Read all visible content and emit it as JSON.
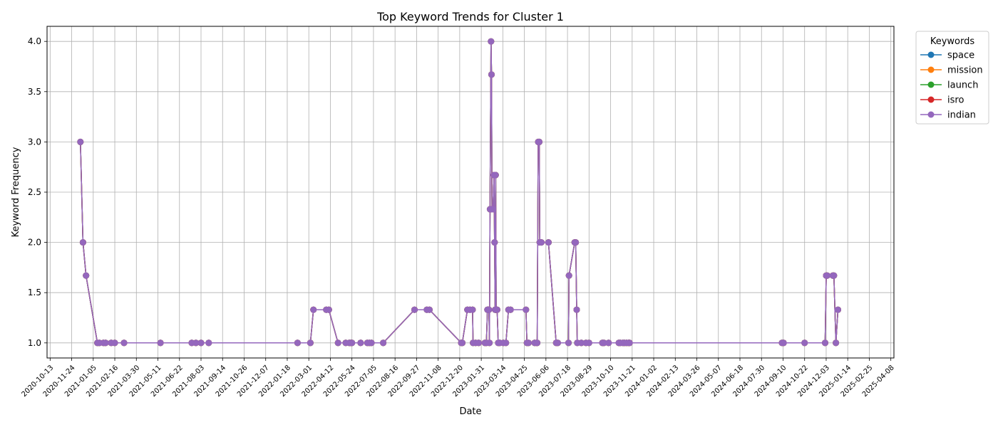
{
  "chart_data": {
    "type": "line",
    "title": "Top Keyword Trends for Cluster 1",
    "xlabel": "Date",
    "ylabel": "Keyword Frequency",
    "xlim": [
      "2020-10-07",
      "2025-04-14"
    ],
    "ylim": [
      0.85,
      4.15
    ],
    "x_ticks": [
      "2020-10-13",
      "2020-11-24",
      "2021-01-05",
      "2021-02-16",
      "2021-03-30",
      "2021-05-11",
      "2021-06-22",
      "2021-08-03",
      "2021-09-14",
      "2021-10-26",
      "2021-12-07",
      "2022-01-18",
      "2022-03-01",
      "2022-04-12",
      "2022-05-24",
      "2022-07-05",
      "2022-08-16",
      "2022-09-27",
      "2022-11-08",
      "2022-12-20",
      "2023-01-31",
      "2023-03-14",
      "2023-04-25",
      "2023-06-06",
      "2023-07-18",
      "2023-08-29",
      "2023-10-10",
      "2023-11-21",
      "2024-01-02",
      "2024-02-13",
      "2024-03-26",
      "2024-05-07",
      "2024-06-18",
      "2024-07-30",
      "2024-09-10",
      "2024-10-22",
      "2024-12-03",
      "2025-01-14",
      "2025-02-25",
      "2025-04-08"
    ],
    "y_ticks": [
      "1.0",
      "1.5",
      "2.0",
      "2.5",
      "3.0",
      "3.5",
      "4.0"
    ],
    "grid": true,
    "legend": {
      "title": "Keywords",
      "placement": "outside-top-right"
    },
    "series": [
      {
        "name": "space",
        "color": "#1f77b4"
      },
      {
        "name": "mission",
        "color": "#ff7f0e"
      },
      {
        "name": "launch",
        "color": "#2ca02c"
      },
      {
        "name": "isro",
        "color": "#d62728"
      },
      {
        "name": "indian",
        "color": "#9467bd"
      }
    ],
    "points": [
      [
        "2020-12-11",
        3.0
      ],
      [
        "2020-12-16",
        2.0
      ],
      [
        "2020-12-22",
        1.67
      ],
      [
        "2021-01-13",
        1.0
      ],
      [
        "2021-01-17",
        1.0
      ],
      [
        "2021-01-25",
        1.0
      ],
      [
        "2021-01-29",
        1.0
      ],
      [
        "2021-02-09",
        1.0
      ],
      [
        "2021-02-16",
        1.0
      ],
      [
        "2021-03-06",
        1.0
      ],
      [
        "2021-05-16",
        1.0
      ],
      [
        "2021-07-16",
        1.0
      ],
      [
        "2021-07-24",
        1.0
      ],
      [
        "2021-08-03",
        1.0
      ],
      [
        "2021-08-18",
        1.0
      ],
      [
        "2022-02-07",
        1.0
      ],
      [
        "2022-03-04",
        1.0
      ],
      [
        "2022-03-10",
        1.33
      ],
      [
        "2022-04-04",
        1.33
      ],
      [
        "2022-04-09",
        1.33
      ],
      [
        "2022-04-27",
        1.0
      ],
      [
        "2022-05-12",
        1.0
      ],
      [
        "2022-05-19",
        1.0
      ],
      [
        "2022-05-22",
        1.0
      ],
      [
        "2022-05-24",
        1.0
      ],
      [
        "2022-06-10",
        1.0
      ],
      [
        "2022-06-23",
        1.0
      ],
      [
        "2022-06-27",
        1.0
      ],
      [
        "2022-07-01",
        1.0
      ],
      [
        "2022-07-24",
        1.0
      ],
      [
        "2022-09-23",
        1.33
      ],
      [
        "2022-10-17",
        1.33
      ],
      [
        "2022-10-22",
        1.33
      ],
      [
        "2022-12-23",
        1.0
      ],
      [
        "2022-12-25",
        1.0
      ],
      [
        "2023-01-04",
        1.33
      ],
      [
        "2023-01-09",
        1.33
      ],
      [
        "2023-01-14",
        1.33
      ],
      [
        "2023-01-15",
        1.0
      ],
      [
        "2023-01-20",
        1.0
      ],
      [
        "2023-01-26",
        1.0
      ],
      [
        "2023-02-07",
        1.0
      ],
      [
        "2023-02-10",
        1.0
      ],
      [
        "2023-02-12",
        1.33
      ],
      [
        "2023-02-13",
        1.33
      ],
      [
        "2023-02-15",
        1.33
      ],
      [
        "2023-02-16",
        1.0
      ],
      [
        "2023-02-17",
        2.33
      ],
      [
        "2023-02-19",
        4.0
      ],
      [
        "2023-02-20",
        3.67
      ],
      [
        "2023-02-21",
        2.33
      ],
      [
        "2023-02-22",
        2.33
      ],
      [
        "2023-02-23",
        2.33
      ],
      [
        "2023-02-25",
        2.67
      ],
      [
        "2023-02-26",
        2.0
      ],
      [
        "2023-02-27",
        1.33
      ],
      [
        "2023-02-28",
        2.67
      ],
      [
        "2023-03-01",
        1.33
      ],
      [
        "2023-03-03",
        1.33
      ],
      [
        "2023-03-05",
        1.0
      ],
      [
        "2023-03-08",
        1.0
      ],
      [
        "2023-03-15",
        1.0
      ],
      [
        "2023-03-20",
        1.0
      ],
      [
        "2023-03-25",
        1.33
      ],
      [
        "2023-03-29",
        1.33
      ],
      [
        "2023-04-28",
        1.33
      ],
      [
        "2023-04-30",
        1.0
      ],
      [
        "2023-05-03",
        1.0
      ],
      [
        "2023-05-15",
        1.0
      ],
      [
        "2023-05-19",
        1.0
      ],
      [
        "2023-05-20",
        1.0
      ],
      [
        "2023-05-22",
        3.0
      ],
      [
        "2023-05-24",
        3.0
      ],
      [
        "2023-05-25",
        2.0
      ],
      [
        "2023-05-28",
        2.0
      ],
      [
        "2023-06-11",
        2.0
      ],
      [
        "2023-06-26",
        1.0
      ],
      [
        "2023-06-29",
        1.0
      ],
      [
        "2023-07-20",
        1.0
      ],
      [
        "2023-07-21",
        1.67
      ],
      [
        "2023-08-01",
        2.0
      ],
      [
        "2023-08-03",
        2.0
      ],
      [
        "2023-08-05",
        1.33
      ],
      [
        "2023-08-06",
        1.0
      ],
      [
        "2023-08-14",
        1.0
      ],
      [
        "2023-08-23",
        1.0
      ],
      [
        "2023-08-29",
        1.0
      ],
      [
        "2023-09-24",
        1.0
      ],
      [
        "2023-09-27",
        1.0
      ],
      [
        "2023-10-06",
        1.0
      ],
      [
        "2023-10-26",
        1.0
      ],
      [
        "2023-10-29",
        1.0
      ],
      [
        "2023-11-03",
        1.0
      ],
      [
        "2023-11-06",
        1.0
      ],
      [
        "2023-11-10",
        1.0
      ],
      [
        "2023-11-14",
        1.0
      ],
      [
        "2023-11-16",
        1.0
      ],
      [
        "2024-09-08",
        1.0
      ],
      [
        "2024-09-11",
        1.0
      ],
      [
        "2024-10-22",
        1.0
      ],
      [
        "2024-12-01",
        1.0
      ],
      [
        "2024-12-03",
        1.67
      ],
      [
        "2024-12-05",
        1.67
      ],
      [
        "2024-12-16",
        1.67
      ],
      [
        "2024-12-18",
        1.67
      ],
      [
        "2024-12-22",
        1.0
      ],
      [
        "2024-12-26",
        1.33
      ]
    ]
  }
}
